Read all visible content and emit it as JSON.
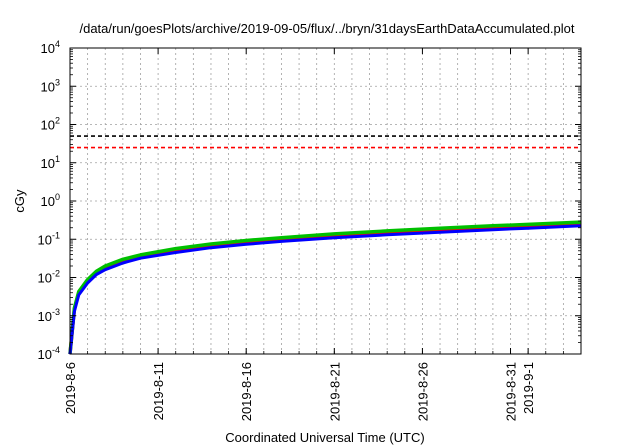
{
  "chart_data": {
    "type": "line",
    "title": "/data/run/goesPlots/archive/2019-09-05/flux/../bryn/31daysEarthDataAccumulated.plot",
    "xlabel": "Coordinated Universal Time (UTC)",
    "ylabel": "cGy",
    "y_scale": "log",
    "ylim": [
      0.0001,
      10000
    ],
    "xlim": [
      "2019-08-06",
      "2019-09-04"
    ],
    "grid": true,
    "x_ticks": [
      "2019-8-6",
      "2019-8-11",
      "2019-8-16",
      "2019-8-21",
      "2019-8-26",
      "2019-8-31",
      "2019-9-1"
    ],
    "y_ticks": [
      {
        "value": 10000,
        "base": "10",
        "exp": "4"
      },
      {
        "value": 1000,
        "base": "10",
        "exp": "3"
      },
      {
        "value": 100,
        "base": "10",
        "exp": "2"
      },
      {
        "value": 10,
        "base": "10",
        "exp": "1"
      },
      {
        "value": 1,
        "base": "10",
        "exp": "0"
      },
      {
        "value": 0.1,
        "base": "10",
        "exp": "-1"
      },
      {
        "value": 0.01,
        "base": "10",
        "exp": "-2"
      },
      {
        "value": 0.001,
        "base": "10",
        "exp": "-3"
      },
      {
        "value": 0.0001,
        "base": "10",
        "exp": "-4"
      }
    ],
    "reference_lines": [
      {
        "value": 50,
        "color": "#000000",
        "style": "dashed"
      },
      {
        "value": 25,
        "color": "#ff0000",
        "style": "dashed"
      }
    ],
    "x": [
      "2019-08-06 00:00",
      "2019-08-06 06:00",
      "2019-08-06 12:00",
      "2019-08-07 00:00",
      "2019-08-07 12:00",
      "2019-08-08 00:00",
      "2019-08-09 00:00",
      "2019-08-10 00:00",
      "2019-08-12 00:00",
      "2019-08-14 00:00",
      "2019-08-16 00:00",
      "2019-08-18 00:00",
      "2019-08-21 00:00",
      "2019-08-24 00:00",
      "2019-08-27 00:00",
      "2019-08-30 00:00",
      "2019-09-01 00:00",
      "2019-09-04 00:00"
    ],
    "series": [
      {
        "color": "#ff0000",
        "values": [
          0.0001,
          0.0015,
          0.004,
          0.008,
          0.013,
          0.018,
          0.027,
          0.035,
          0.05,
          0.066,
          0.082,
          0.097,
          0.12,
          0.145,
          0.17,
          0.2,
          0.22,
          0.25
        ]
      },
      {
        "color": "#00c000",
        "values": [
          0.0001,
          0.0016,
          0.0043,
          0.0088,
          0.0145,
          0.02,
          0.03,
          0.039,
          0.057,
          0.075,
          0.093,
          0.11,
          0.138,
          0.165,
          0.195,
          0.225,
          0.245,
          0.28
        ]
      },
      {
        "color": "#0000ff",
        "values": [
          0.0001,
          0.0013,
          0.0035,
          0.0072,
          0.012,
          0.016,
          0.024,
          0.032,
          0.045,
          0.06,
          0.074,
          0.088,
          0.109,
          0.131,
          0.153,
          0.178,
          0.195,
          0.225
        ]
      }
    ]
  }
}
